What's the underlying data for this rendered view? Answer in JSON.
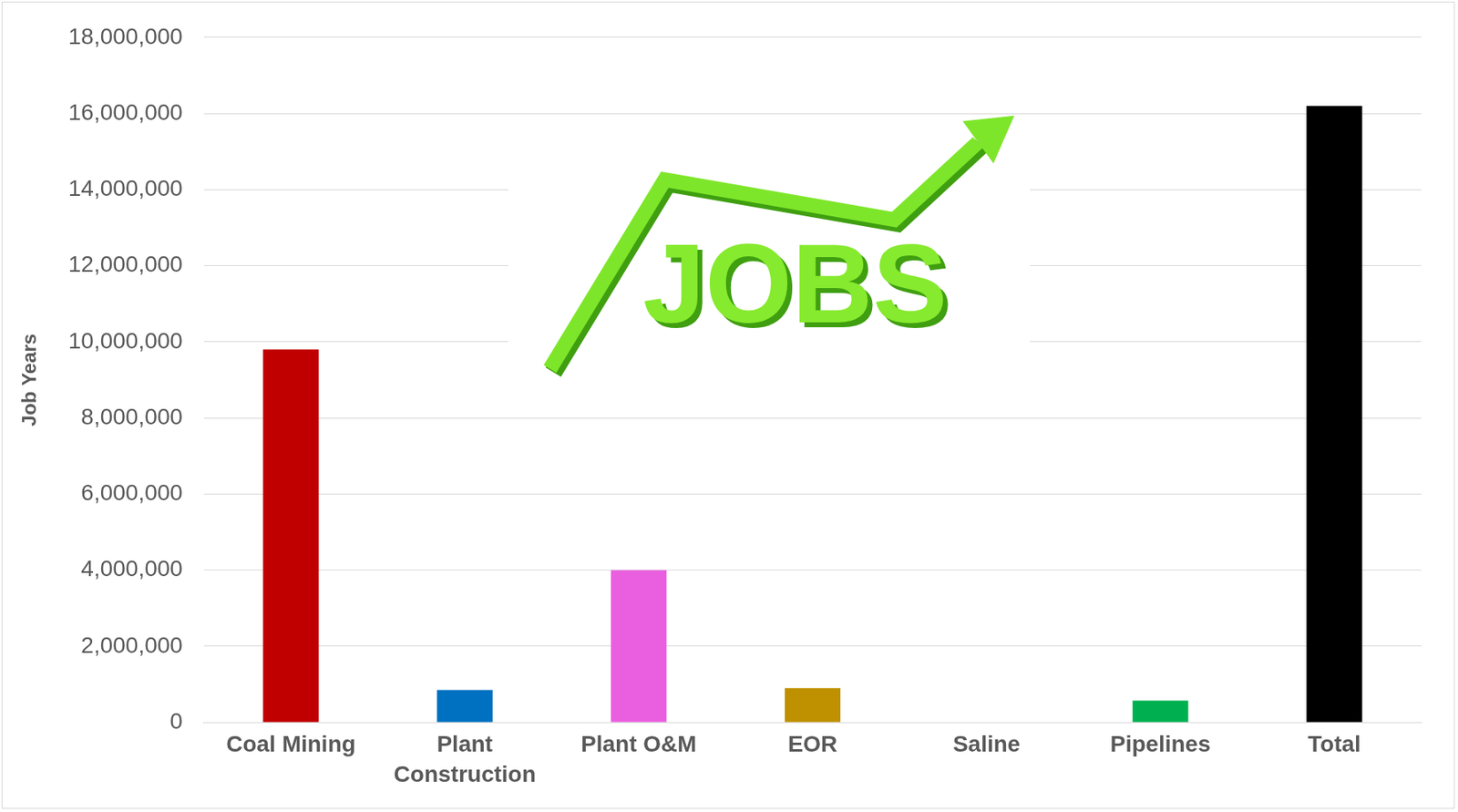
{
  "chart_data": {
    "type": "bar",
    "categories": [
      "Coal Mining",
      "Plant Construction",
      "Plant O&M",
      "EOR",
      "Saline",
      "Pipelines",
      "Total"
    ],
    "values": [
      9800000,
      850000,
      4000000,
      900000,
      0,
      570000,
      16200000
    ],
    "colors": [
      "#c00000",
      "#0070c0",
      "#ea5fdf",
      "#bf9000",
      "#7f7f7f",
      "#00b050",
      "#000000"
    ],
    "y_label": "Job Years",
    "annotation": "JOBS",
    "ylim": [
      0,
      18000000
    ],
    "yticks": [
      0,
      {
        "value": 2000000,
        "label": "2,000,000"
      },
      {
        "value": 4000000,
        "label": "4,000,000"
      },
      {
        "value": 6000000,
        "label": "6,000,000"
      },
      {
        "value": 8000000,
        "label": "8,000,000"
      },
      {
        "value": 10000000,
        "label": "10,000,000"
      },
      {
        "value": 12000000,
        "label": "12,000,000"
      },
      {
        "value": 14000000,
        "label": "14,000,000"
      },
      {
        "value": 16000000,
        "label": "16,000,000"
      },
      {
        "value": 18000000,
        "label": "18,000,000"
      }
    ],
    "grid": true
  }
}
